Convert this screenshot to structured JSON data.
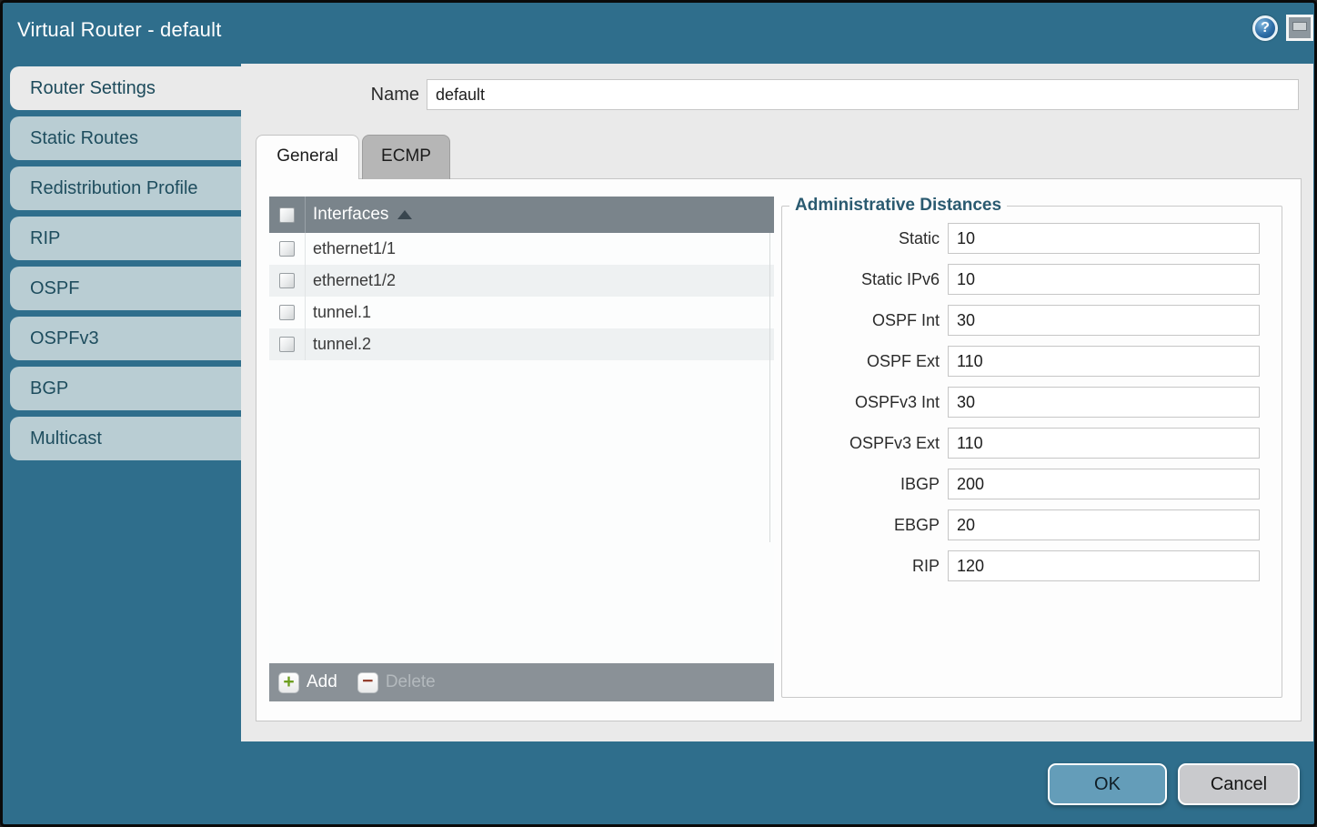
{
  "window": {
    "title": "Virtual Router - default",
    "help_icon_glyph": "?"
  },
  "sidebar": {
    "items": [
      {
        "label": "Router Settings",
        "active": true
      },
      {
        "label": "Static Routes",
        "active": false
      },
      {
        "label": "Redistribution Profile",
        "active": false
      },
      {
        "label": "RIP",
        "active": false
      },
      {
        "label": "OSPF",
        "active": false
      },
      {
        "label": "OSPFv3",
        "active": false
      },
      {
        "label": "BGP",
        "active": false
      },
      {
        "label": "Multicast",
        "active": false
      }
    ]
  },
  "form": {
    "name_label": "Name",
    "name_value": "default"
  },
  "tabs": {
    "general_label": "General",
    "ecmp_label": "ECMP",
    "active_tab": "General"
  },
  "interfaces": {
    "header": "Interfaces",
    "sort": "ascending",
    "rows": [
      {
        "label": "ethernet1/1",
        "checked": false
      },
      {
        "label": "ethernet1/2",
        "checked": false
      },
      {
        "label": "tunnel.1",
        "checked": false
      },
      {
        "label": "tunnel.2",
        "checked": false
      }
    ],
    "add_label": "Add",
    "add_icon_glyph": "+",
    "delete_label": "Delete",
    "delete_icon_glyph": "−",
    "delete_enabled": false
  },
  "admin_distances": {
    "legend": "Administrative Distances",
    "fields": [
      {
        "label": "Static",
        "value": "10"
      },
      {
        "label": "Static IPv6",
        "value": "10"
      },
      {
        "label": "OSPF Int",
        "value": "30"
      },
      {
        "label": "OSPF Ext",
        "value": "110"
      },
      {
        "label": "OSPFv3 Int",
        "value": "30"
      },
      {
        "label": "OSPFv3 Ext",
        "value": "110"
      },
      {
        "label": "IBGP",
        "value": "200"
      },
      {
        "label": "EBGP",
        "value": "20"
      },
      {
        "label": "RIP",
        "value": "120"
      }
    ]
  },
  "actions": {
    "ok_label": "OK",
    "cancel_label": "Cancel"
  },
  "colors": {
    "dialog_teal": "#2f6e8c",
    "sidebar_item_bg": "#b9cdd3",
    "sidebar_text": "#1e4d5e",
    "content_bg": "#eaeaea",
    "panel_bg": "#fdfdfd",
    "table_header_bg": "#7a848b",
    "table_footer_bg": "#8a9197",
    "row_alt_bg": "#eef1f2",
    "ok_button_bg": "#649db9",
    "cancel_button_bg": "#c9cacd",
    "legend_text": "#2a5a70",
    "add_plus": "#6d9e1f",
    "delete_minus": "#94402e"
  }
}
